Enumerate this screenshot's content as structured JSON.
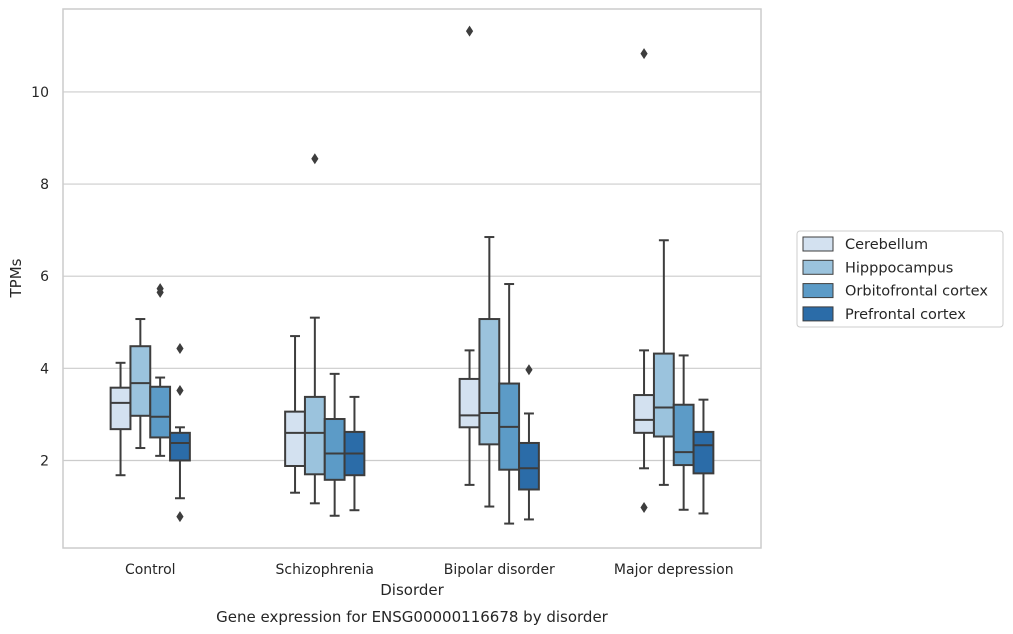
{
  "chart_data": {
    "type": "box",
    "title": "Gene expression for ENSG00000116678 by disorder",
    "xlabel": "Disorder",
    "ylabel": "TPMs",
    "ylim": [
      0.1,
      11.8
    ],
    "yticks": [
      2,
      4,
      6,
      8,
      10
    ],
    "grid": "horizontal",
    "legend_position": "right",
    "categories": [
      "Control",
      "Schizophrenia",
      "Bipolar disorder",
      "Major depression"
    ],
    "series": [
      {
        "name": "Cerebellum",
        "color": "#d3e1f0",
        "boxes": [
          {
            "whislo": 1.68,
            "q1": 2.68,
            "med": 3.25,
            "q3": 3.58,
            "whishi": 4.12,
            "fliers": []
          },
          {
            "whislo": 1.3,
            "q1": 1.88,
            "med": 2.6,
            "q3": 3.06,
            "whishi": 4.7,
            "fliers": []
          },
          {
            "whislo": 1.47,
            "q1": 2.72,
            "med": 2.98,
            "q3": 3.77,
            "whishi": 4.39,
            "fliers": [
              11.32
            ]
          },
          {
            "whislo": 1.83,
            "q1": 2.6,
            "med": 2.88,
            "q3": 3.42,
            "whishi": 4.39,
            "fliers": [
              0.98,
              10.83
            ]
          }
        ]
      },
      {
        "name": "Hipppocampus",
        "color": "#9bc3dd",
        "boxes": [
          {
            "whislo": 2.27,
            "q1": 2.97,
            "med": 3.68,
            "q3": 4.48,
            "whishi": 5.07,
            "fliers": []
          },
          {
            "whislo": 1.07,
            "q1": 1.7,
            "med": 2.6,
            "q3": 3.38,
            "whishi": 5.1,
            "fliers": [
              8.55
            ]
          },
          {
            "whislo": 1.0,
            "q1": 2.35,
            "med": 3.03,
            "q3": 5.07,
            "whishi": 6.85,
            "fliers": []
          },
          {
            "whislo": 1.47,
            "q1": 2.52,
            "med": 3.15,
            "q3": 4.32,
            "whishi": 6.78,
            "fliers": []
          }
        ]
      },
      {
        "name": "Orbitofrontal cortex",
        "color": "#5c9bc7",
        "boxes": [
          {
            "whislo": 2.1,
            "q1": 2.5,
            "med": 2.95,
            "q3": 3.6,
            "whishi": 3.8,
            "fliers": [
              5.65,
              5.73
            ]
          },
          {
            "whislo": 0.8,
            "q1": 1.58,
            "med": 2.15,
            "q3": 2.9,
            "whishi": 3.88,
            "fliers": []
          },
          {
            "whislo": 0.63,
            "q1": 1.8,
            "med": 2.73,
            "q3": 3.67,
            "whishi": 5.83,
            "fliers": []
          },
          {
            "whislo": 0.93,
            "q1": 1.9,
            "med": 2.18,
            "q3": 3.21,
            "whishi": 4.28,
            "fliers": []
          }
        ]
      },
      {
        "name": "Prefrontal cortex",
        "color": "#2b6ca8",
        "boxes": [
          {
            "whislo": 1.18,
            "q1": 2.0,
            "med": 2.38,
            "q3": 2.6,
            "whishi": 2.72,
            "fliers": [
              0.78,
              3.52,
              4.43
            ]
          },
          {
            "whislo": 0.92,
            "q1": 1.68,
            "med": 2.15,
            "q3": 2.62,
            "whishi": 3.38,
            "fliers": []
          },
          {
            "whislo": 0.72,
            "q1": 1.37,
            "med": 1.83,
            "q3": 2.38,
            "whishi": 3.02,
            "fliers": [
              3.97
            ]
          },
          {
            "whislo": 0.85,
            "q1": 1.72,
            "med": 2.33,
            "q3": 2.62,
            "whishi": 3.32,
            "fliers": []
          }
        ]
      }
    ]
  }
}
